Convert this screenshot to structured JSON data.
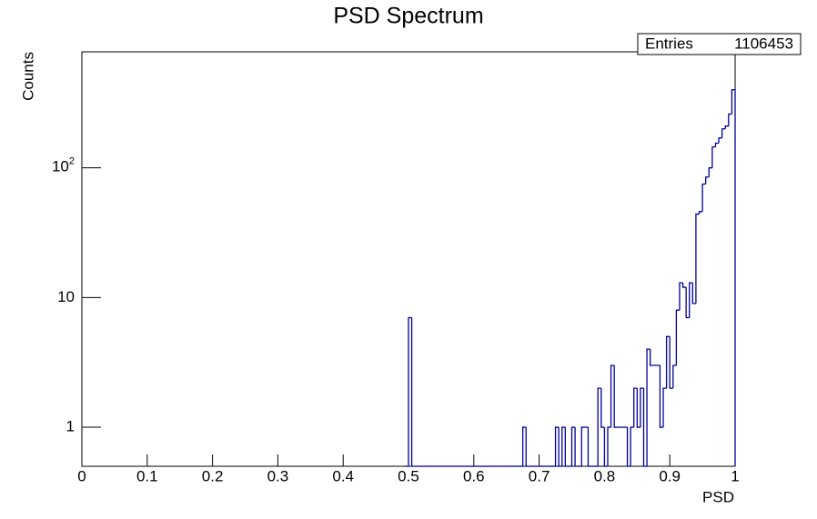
{
  "chart_data": {
    "type": "histogram",
    "title": "PSD Spectrum",
    "x_label": "PSD",
    "y_label": "Counts",
    "stats": {
      "label": "Entries",
      "value": 1106453
    },
    "color": "#000099",
    "log_y": true,
    "xlim": [
      0,
      1
    ],
    "xticks": [
      0,
      0.1,
      0.2,
      0.3,
      0.4,
      0.5,
      0.6,
      0.7,
      0.8,
      0.9,
      1
    ],
    "ylim": [
      0.5,
      785
    ],
    "yticks": [
      1,
      10,
      {
        "value": 100,
        "label": "10^2"
      }
    ],
    "bins": [
      0.495,
      0.5,
      0.505,
      0.51,
      0.515,
      0.52,
      0.525,
      0.53,
      0.535,
      0.54,
      0.545,
      0.55,
      0.555,
      0.56,
      0.565,
      0.57,
      0.575,
      0.58,
      0.585,
      0.59,
      0.595,
      0.6,
      0.605,
      0.61,
      0.615,
      0.62,
      0.625,
      0.63,
      0.635,
      0.64,
      0.645,
      0.65,
      0.655,
      0.66,
      0.665,
      0.67,
      0.675,
      0.68,
      0.685,
      0.69,
      0.695,
      0.7,
      0.705,
      0.71,
      0.715,
      0.72,
      0.725,
      0.73,
      0.735,
      0.74,
      0.745,
      0.75,
      0.755,
      0.76,
      0.765,
      0.77,
      0.775,
      0.78,
      0.785,
      0.79,
      0.795,
      0.8,
      0.805,
      0.81,
      0.815,
      0.82,
      0.825,
      0.83,
      0.835,
      0.84,
      0.845,
      0.85,
      0.855,
      0.86,
      0.865,
      0.87,
      0.875,
      0.88,
      0.885,
      0.89,
      0.895,
      0.9,
      0.905,
      0.91,
      0.915,
      0.92,
      0.925,
      0.93,
      0.935,
      0.94,
      0.945,
      0.95,
      0.955,
      0.96,
      0.965,
      0.97,
      0.975,
      0.98,
      0.985,
      0.99,
      0.995,
      1
    ],
    "values": [
      0,
      7,
      0,
      0,
      0,
      0,
      0,
      0,
      0,
      0,
      0,
      0,
      0,
      0,
      0,
      0,
      0,
      0,
      0,
      0,
      0,
      0,
      0,
      0,
      0,
      0,
      0,
      0,
      0,
      0,
      0,
      0,
      0,
      0,
      0,
      0,
      1,
      0,
      0,
      0,
      0,
      0,
      0,
      0,
      0,
      0,
      1,
      0,
      1,
      0,
      0,
      1,
      0,
      0,
      1,
      1,
      0,
      0,
      0,
      2,
      1,
      0,
      1,
      3,
      1,
      1,
      1,
      1,
      0,
      1,
      2,
      1,
      2,
      0,
      4,
      3,
      3,
      3,
      1,
      2,
      5,
      2,
      3,
      8,
      13,
      12,
      7,
      13,
      9,
      44,
      46,
      75,
      85,
      100,
      145,
      155,
      170,
      200,
      210,
      260,
      400
    ]
  }
}
